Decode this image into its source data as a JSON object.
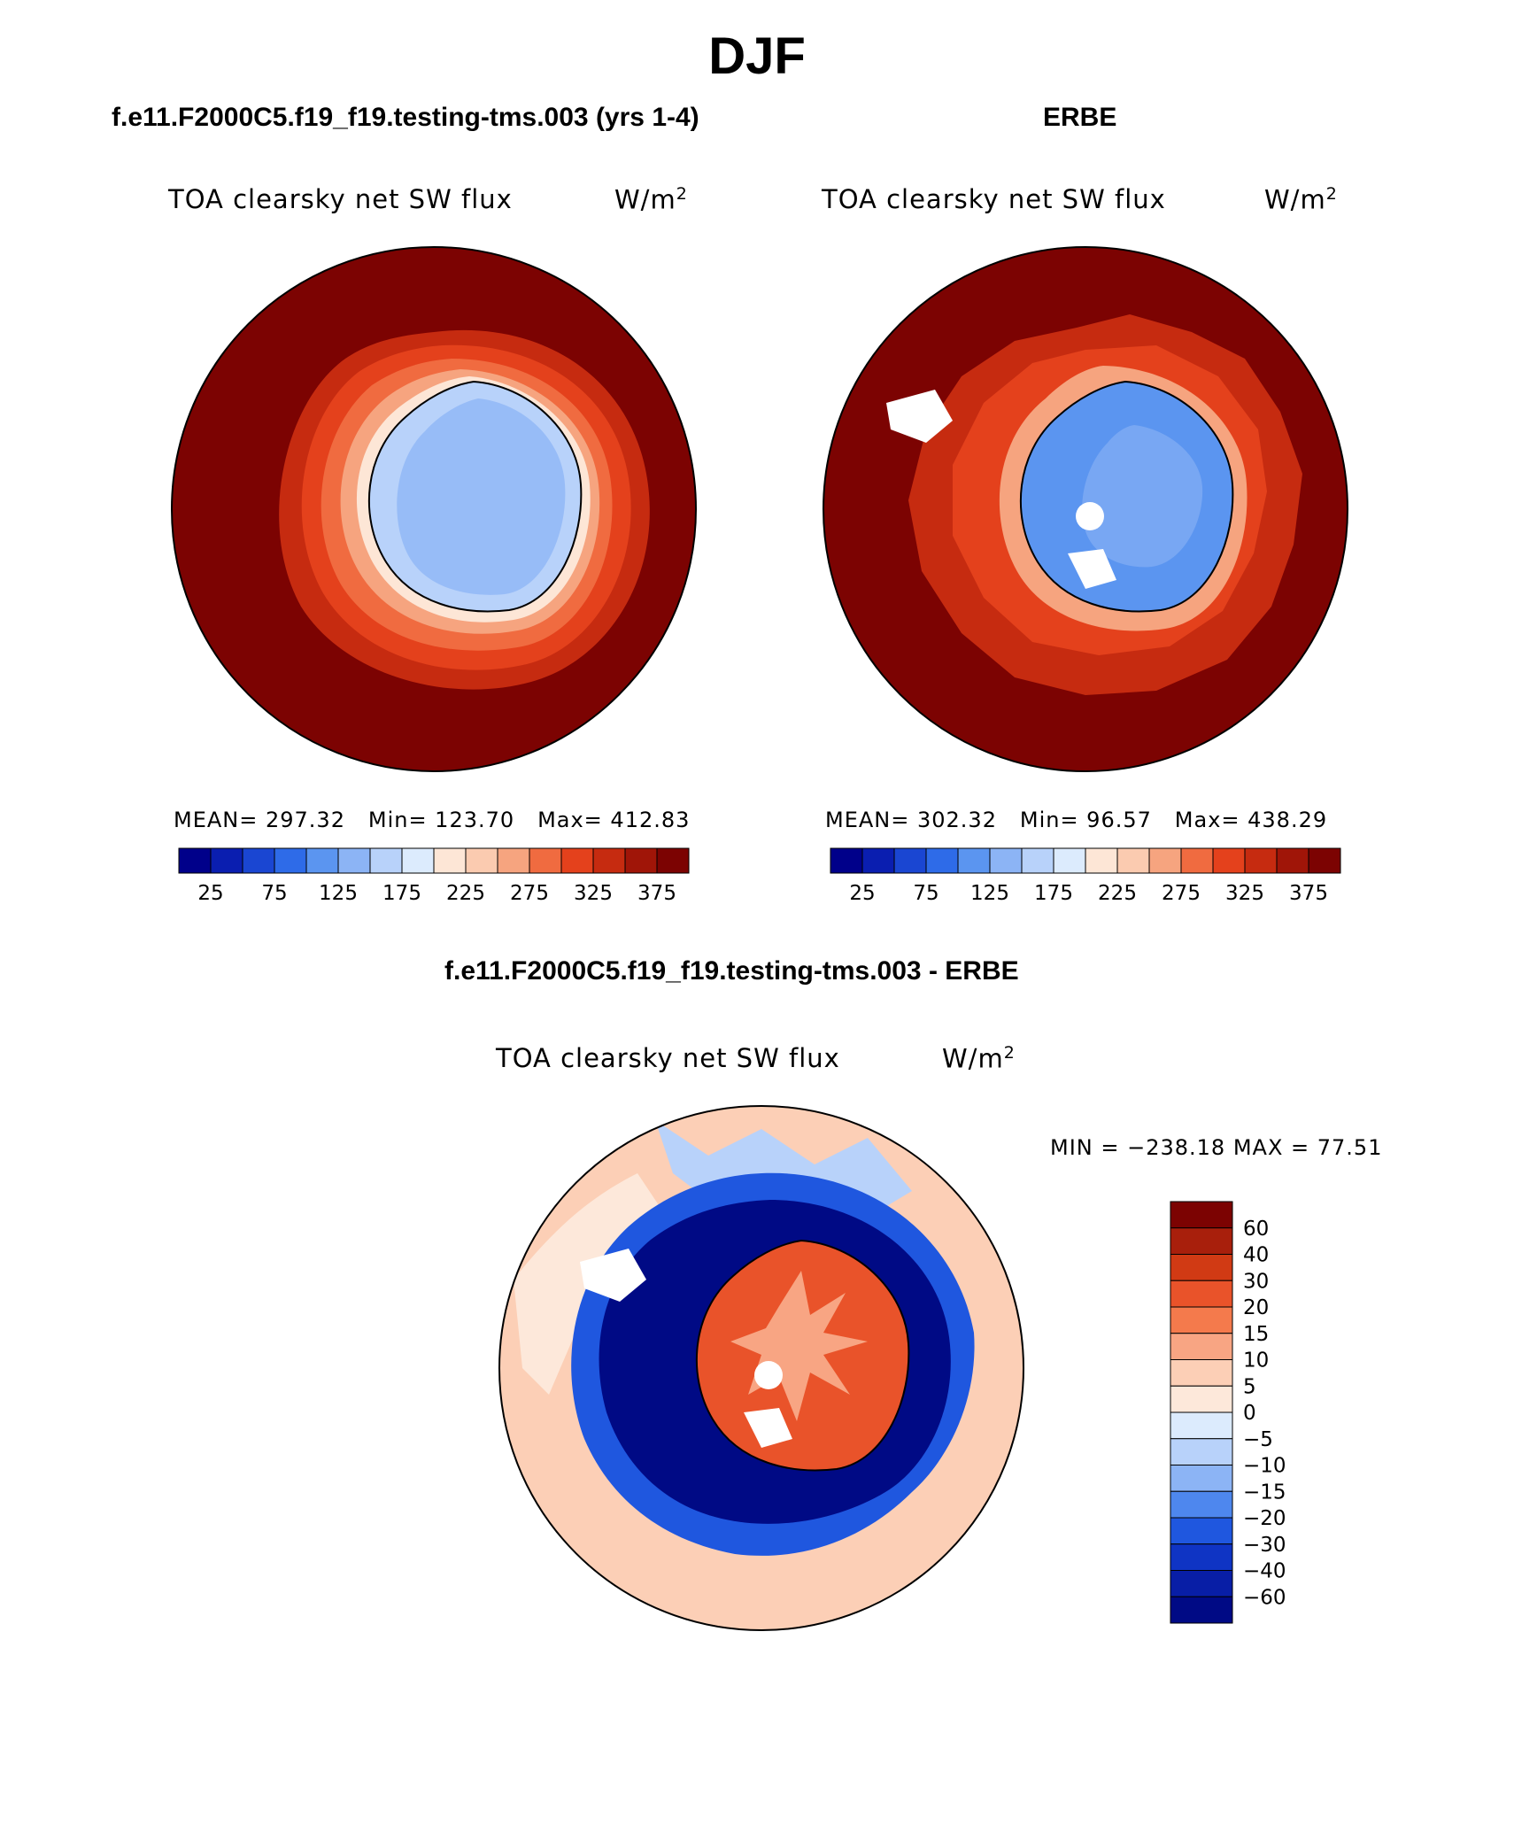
{
  "figure": {
    "season_title": "DJF",
    "left_panel": {
      "title": "f.e11.F2000C5.f19_f19.testing-tms.003 (yrs 1-4)",
      "variable": "TOA clearsky net SW flux",
      "units": "W/m",
      "units_exp": "2",
      "stats": {
        "mean": "MEAN= 297.32",
        "min": "Min= 123.70",
        "max": "Max= 412.83"
      }
    },
    "right_panel": {
      "title": "ERBE",
      "variable": "TOA clearsky net SW flux",
      "units": "W/m",
      "units_exp": "2",
      "stats": {
        "mean": "MEAN= 302.32",
        "min": "Min=  96.57",
        "max": "Max= 438.29"
      }
    },
    "diff_panel": {
      "title": "f.e11.F2000C5.f19_f19.testing-tms.003 - ERBE",
      "variable": "TOA clearsky net SW flux",
      "units": "W/m",
      "units_exp": "2",
      "minmax": "MIN = −238.18 MAX =   77.51"
    }
  },
  "colorbars": {
    "abs": {
      "colors": [
        "#00008a",
        "#0a1eb0",
        "#1a46d2",
        "#2e6be8",
        "#5b95f0",
        "#8cb4f5",
        "#b8d2fa",
        "#dcebfd",
        "#fde6d6",
        "#fbcbb0",
        "#f6a47f",
        "#f06b40",
        "#e4411c",
        "#c62b10",
        "#a01508",
        "#7c0302"
      ],
      "tick_labels": [
        "25",
        "75",
        "125",
        "175",
        "225",
        "275",
        "325",
        "375"
      ]
    },
    "diff": {
      "colors": [
        "#7c0302",
        "#a81f0c",
        "#d13a14",
        "#e9532a",
        "#f47a4c",
        "#f8a583",
        "#fccfb6",
        "#fde8da",
        "#dcebfd",
        "#b8d2fa",
        "#8cb4f5",
        "#4e87ee",
        "#1f57df",
        "#0f34c4",
        "#081ea6",
        "#000a85"
      ],
      "tick_labels": [
        "60",
        "40",
        "30",
        "20",
        "15",
        "10",
        "5",
        "0",
        "−5",
        "−10",
        "−15",
        "−20",
        "−30",
        "−40",
        "−60"
      ]
    }
  }
}
